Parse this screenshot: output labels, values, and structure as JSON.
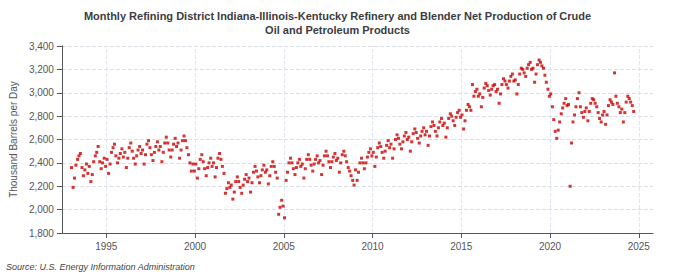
{
  "chart_data": {
    "type": "scatter",
    "title": "Monthly Refining District Indiana-Illinois-Kentucky Refinery and Blender Net Production of Crude\nOil and Petroleum Products",
    "ylabel": "Thousand Barrels per Day",
    "annotation": "Source: U.S. Energy Information Administration",
    "color": "#CC0000",
    "marker": "square",
    "grid": true,
    "xlim": [
      1992.5,
      2025.8
    ],
    "xticks": [
      1995,
      2000,
      2005,
      2010,
      2015,
      2020,
      2025
    ],
    "ylim": [
      1800,
      3400
    ],
    "yticks": [
      {
        "value": 1800,
        "label": "1,800"
      },
      {
        "value": 2000,
        "label": "2,000"
      },
      {
        "value": 2200,
        "label": "2,200"
      },
      {
        "value": 2400,
        "label": "2,400"
      },
      {
        "value": 2600,
        "label": "2,600"
      },
      {
        "value": 2800,
        "label": "2,800"
      },
      {
        "value": 3000,
        "label": "3,000"
      },
      {
        "value": 3200,
        "label": "3,200"
      },
      {
        "value": 3400,
        "label": "3,400"
      }
    ],
    "x": [
      1993.04,
      1993.13,
      1993.21,
      1993.29,
      1993.38,
      1993.46,
      1993.54,
      1993.63,
      1993.71,
      1993.79,
      1993.88,
      1993.96,
      1994.04,
      1994.13,
      1994.21,
      1994.29,
      1994.38,
      1994.46,
      1994.54,
      1994.63,
      1994.71,
      1994.79,
      1994.88,
      1994.96,
      1995.04,
      1995.13,
      1995.21,
      1995.29,
      1995.38,
      1995.46,
      1995.54,
      1995.63,
      1995.71,
      1995.79,
      1995.88,
      1995.96,
      1996.04,
      1996.13,
      1996.21,
      1996.29,
      1996.38,
      1996.46,
      1996.54,
      1996.63,
      1996.71,
      1996.79,
      1996.88,
      1996.96,
      1997.04,
      1997.13,
      1997.21,
      1997.29,
      1997.38,
      1997.46,
      1997.54,
      1997.63,
      1997.71,
      1997.79,
      1997.88,
      1997.96,
      1998.04,
      1998.13,
      1998.21,
      1998.29,
      1998.38,
      1998.46,
      1998.54,
      1998.63,
      1998.71,
      1998.79,
      1998.88,
      1998.96,
      1999.04,
      1999.13,
      1999.21,
      1999.29,
      1999.38,
      1999.46,
      1999.54,
      1999.63,
      1999.71,
      1999.79,
      1999.88,
      1999.96,
      2000.04,
      2000.13,
      2000.21,
      2000.29,
      2000.38,
      2000.46,
      2000.54,
      2000.63,
      2000.71,
      2000.79,
      2000.88,
      2000.96,
      2001.04,
      2001.13,
      2001.21,
      2001.29,
      2001.38,
      2001.46,
      2001.54,
      2001.63,
      2001.71,
      2001.79,
      2001.88,
      2001.96,
      2002.04,
      2002.13,
      2002.21,
      2002.29,
      2002.38,
      2002.46,
      2002.54,
      2002.63,
      2002.71,
      2002.79,
      2002.88,
      2002.96,
      2003.04,
      2003.13,
      2003.21,
      2003.29,
      2003.38,
      2003.46,
      2003.54,
      2003.63,
      2003.71,
      2003.79,
      2003.88,
      2003.96,
      2004.04,
      2004.13,
      2004.21,
      2004.29,
      2004.38,
      2004.46,
      2004.54,
      2004.63,
      2004.71,
      2004.79,
      2004.88,
      2004.96,
      2005.04,
      2005.13,
      2005.21,
      2005.29,
      2005.38,
      2005.46,
      2005.54,
      2005.63,
      2005.71,
      2005.79,
      2005.88,
      2005.96,
      2006.04,
      2006.13,
      2006.21,
      2006.29,
      2006.38,
      2006.46,
      2006.54,
      2006.63,
      2006.71,
      2006.79,
      2006.88,
      2006.96,
      2007.04,
      2007.13,
      2007.21,
      2007.29,
      2007.38,
      2007.46,
      2007.54,
      2007.63,
      2007.71,
      2007.79,
      2007.88,
      2007.96,
      2008.04,
      2008.13,
      2008.21,
      2008.29,
      2008.38,
      2008.46,
      2008.54,
      2008.63,
      2008.71,
      2008.79,
      2008.88,
      2008.96,
      2009.04,
      2009.13,
      2009.21,
      2009.29,
      2009.38,
      2009.46,
      2009.54,
      2009.63,
      2009.71,
      2009.79,
      2009.88,
      2009.96,
      2010.04,
      2010.13,
      2010.21,
      2010.29,
      2010.38,
      2010.46,
      2010.54,
      2010.63,
      2010.71,
      2010.79,
      2010.88,
      2010.96,
      2011.04,
      2011.13,
      2011.21,
      2011.29,
      2011.38,
      2011.46,
      2011.54,
      2011.63,
      2011.71,
      2011.79,
      2011.88,
      2011.96,
      2012.04,
      2012.13,
      2012.21,
      2012.29,
      2012.38,
      2012.46,
      2012.54,
      2012.63,
      2012.71,
      2012.79,
      2012.88,
      2012.96,
      2013.04,
      2013.13,
      2013.21,
      2013.29,
      2013.38,
      2013.46,
      2013.54,
      2013.63,
      2013.71,
      2013.79,
      2013.88,
      2013.96,
      2014.04,
      2014.13,
      2014.21,
      2014.29,
      2014.38,
      2014.46,
      2014.54,
      2014.63,
      2014.71,
      2014.79,
      2014.88,
      2014.96,
      2015.04,
      2015.13,
      2015.21,
      2015.29,
      2015.38,
      2015.46,
      2015.54,
      2015.63,
      2015.71,
      2015.79,
      2015.88,
      2015.96,
      2016.04,
      2016.13,
      2016.21,
      2016.29,
      2016.38,
      2016.46,
      2016.54,
      2016.63,
      2016.71,
      2016.79,
      2016.88,
      2016.96,
      2017.04,
      2017.13,
      2017.21,
      2017.29,
      2017.38,
      2017.46,
      2017.54,
      2017.63,
      2017.71,
      2017.79,
      2017.88,
      2017.96,
      2018.04,
      2018.13,
      2018.21,
      2018.29,
      2018.38,
      2018.46,
      2018.54,
      2018.63,
      2018.71,
      2018.79,
      2018.88,
      2018.96,
      2019.04,
      2019.13,
      2019.21,
      2019.29,
      2019.38,
      2019.46,
      2019.54,
      2019.63,
      2019.71,
      2019.79,
      2019.88,
      2019.96,
      2020.04,
      2020.13,
      2020.21,
      2020.29,
      2020.38,
      2020.46,
      2020.54,
      2020.63,
      2020.71,
      2020.79,
      2020.88,
      2020.96,
      2021.04,
      2021.13,
      2021.21,
      2021.29,
      2021.38,
      2021.46,
      2021.54,
      2021.63,
      2021.71,
      2021.79,
      2021.88,
      2021.96,
      2022.04,
      2022.13,
      2022.21,
      2022.29,
      2022.38,
      2022.46,
      2022.54,
      2022.63,
      2022.71,
      2022.79,
      2022.88,
      2022.96,
      2023.04,
      2023.13,
      2023.21,
      2023.29,
      2023.38,
      2023.46,
      2023.54,
      2023.63,
      2023.71,
      2023.79,
      2023.88,
      2023.96,
      2024.04,
      2024.13,
      2024.21,
      2024.29,
      2024.38,
      2024.46,
      2024.54,
      2024.63,
      2024.71
    ],
    "values": [
      2360,
      2190,
      2270,
      2380,
      2430,
      2460,
      2480,
      2360,
      2290,
      2340,
      2390,
      2310,
      2370,
      2240,
      2300,
      2410,
      2460,
      2490,
      2540,
      2410,
      2350,
      2400,
      2440,
      2370,
      2430,
      2310,
      2390,
      2490,
      2530,
      2560,
      2460,
      2400,
      2440,
      2480,
      2520,
      2450,
      2490,
      2360,
      2440,
      2530,
      2570,
      2500,
      2440,
      2390,
      2460,
      2510,
      2540,
      2480,
      2510,
      2390,
      2470,
      2560,
      2590,
      2530,
      2470,
      2420,
      2490,
      2540,
      2580,
      2510,
      2540,
      2410,
      2490,
      2570,
      2620,
      2570,
      2510,
      2450,
      2510,
      2560,
      2610,
      2540,
      2570,
      2440,
      2510,
      2590,
      2630,
      2590,
      2530,
      2470,
      2400,
      2330,
      2390,
      2330,
      2390,
      2270,
      2350,
      2430,
      2470,
      2410,
      2350,
      2290,
      2360,
      2400,
      2440,
      2370,
      2400,
      2280,
      2360,
      2440,
      2480,
      2430,
      2370,
      2310,
      2140,
      2180,
      2230,
      2190,
      2210,
      2090,
      2150,
      2240,
      2280,
      2240,
      2190,
      2140,
      2210,
      2260,
      2300,
      2240,
      2270,
      2150,
      2230,
      2320,
      2370,
      2330,
      2280,
      2230,
      2290,
      2340,
      2380,
      2320,
      2340,
      2220,
      2290,
      2370,
      2410,
      2370,
      2320,
      2270,
      1960,
      2020,
      2080,
      2030,
      1930,
      2250,
      2320,
      2400,
      2440,
      2400,
      2350,
      2300,
      2360,
      2400,
      2430,
      2370,
      2390,
      2270,
      2350,
      2430,
      2470,
      2430,
      2380,
      2330,
      2390,
      2430,
      2460,
      2400,
      2420,
      2300,
      2380,
      2460,
      2500,
      2460,
      2410,
      2360,
      2410,
      2450,
      2480,
      2420,
      2440,
      2320,
      2400,
      2470,
      2500,
      2460,
      2410,
      2360,
      2330,
      2290,
      2250,
      2210,
      2340,
      2250,
      2320,
      2400,
      2440,
      2400,
      2350,
      2400,
      2450,
      2490,
      2520,
      2460,
      2490,
      2370,
      2450,
      2530,
      2570,
      2540,
      2490,
      2440,
      2500,
      2550,
      2590,
      2530,
      2560,
      2440,
      2520,
      2600,
      2640,
      2610,
      2560,
      2520,
      2580,
      2630,
      2660,
      2600,
      2620,
      2500,
      2580,
      2650,
      2690,
      2660,
      2610,
      2570,
      2630,
      2670,
      2700,
      2640,
      2670,
      2550,
      2630,
      2710,
      2750,
      2720,
      2670,
      2630,
      2700,
      2750,
      2780,
      2720,
      2740,
      2620,
      2700,
      2780,
      2820,
      2800,
      2760,
      2720,
      2790,
      2830,
      2850,
      2790,
      2810,
      2690,
      2760,
      2850,
      2900,
      2880,
      2850,
      3070,
      2970,
      3010,
      3030,
      2970,
      2990,
      2880,
      2960,
      3040,
      3080,
      3060,
      3020,
      2980,
      3030,
      3060,
      3070,
      3010,
      3030,
      2910,
      2990,
      3070,
      3120,
      3100,
      3070,
      3040,
      3100,
      3140,
      3160,
      3100,
      3110,
      2990,
      3070,
      3160,
      3210,
      3200,
      3170,
      3140,
      3210,
      3240,
      3260,
      3200,
      3210,
      3090,
      3160,
      3240,
      3280,
      3260,
      3230,
      3210,
      3150,
      3090,
      3030,
      2970,
      2990,
      2880,
      2770,
      2670,
      2610,
      2680,
      2750,
      2820,
      2870,
      2910,
      2950,
      2890,
      2900,
      2200,
      2570,
      2750,
      2810,
      2880,
      2950,
      3000,
      2880,
      2830,
      2790,
      2840,
      2870,
      2760,
      2840,
      2910,
      2950,
      2940,
      2910,
      2880,
      2830,
      2780,
      2750,
      2810,
      2840,
      2730,
      2810,
      2890,
      2940,
      2920,
      2900,
      3170,
      2970,
      2910,
      2880,
      2830,
      2860,
      2750,
      2830,
      2920,
      2970,
      2950,
      2920,
      2890,
      2840
    ]
  }
}
